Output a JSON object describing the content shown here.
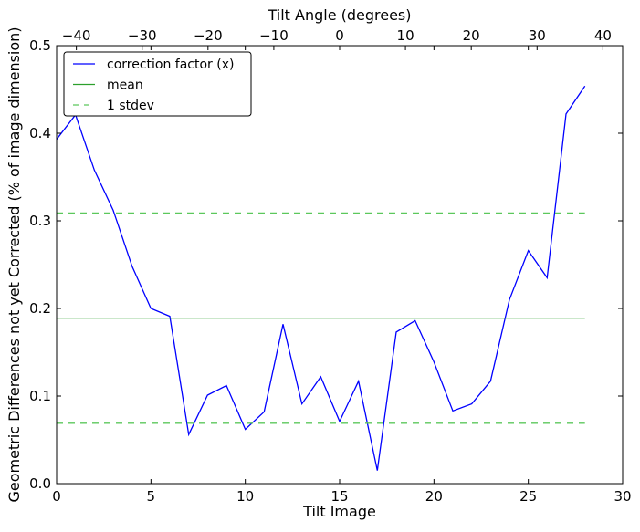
{
  "chart_data": {
    "type": "line",
    "xlabel": "Tilt Image",
    "ylabel": "Geometric Differences not yet Corrected (% of image dimension)",
    "top_xlabel": "Tilt Angle (degrees)",
    "xlim": [
      0,
      30
    ],
    "ylim": [
      0,
      0.5
    ],
    "top_xlim": [
      -43,
      43
    ],
    "xticks": [
      0,
      5,
      10,
      15,
      20,
      25,
      30
    ],
    "yticks": [
      0.0,
      0.1,
      0.2,
      0.3,
      0.4,
      0.5
    ],
    "ytick_labels": [
      "0.0",
      "0.1",
      "0.2",
      "0.3",
      "0.4",
      "0.5"
    ],
    "top_xticks": [
      -40,
      -30,
      -20,
      -10,
      0,
      10,
      20,
      30,
      40
    ],
    "top_xtick_labels": [
      "−40",
      "−30",
      "−20",
      "−10",
      "0",
      "10",
      "20",
      "30",
      "40"
    ],
    "grid": false,
    "legend_position": "top-left",
    "series": [
      {
        "name": "correction factor (x)",
        "color": "#0000ff",
        "style": "solid",
        "x": [
          0,
          1,
          2,
          3,
          4,
          5,
          6,
          7,
          8,
          9,
          10,
          11,
          12,
          13,
          14,
          15,
          16,
          17,
          18,
          19,
          20,
          21,
          22,
          23,
          24,
          25,
          26,
          27,
          28
        ],
        "values": [
          0.393,
          0.421,
          0.358,
          0.312,
          0.248,
          0.2,
          0.191,
          0.056,
          0.101,
          0.112,
          0.062,
          0.082,
          0.182,
          0.091,
          0.122,
          0.071,
          0.117,
          0.015,
          0.173,
          0.186,
          0.139,
          0.083,
          0.091,
          0.117,
          0.21,
          0.266,
          0.235,
          0.422,
          0.454
        ]
      },
      {
        "name": "mean",
        "color": "#2ca02c",
        "style": "solid",
        "x": [
          0,
          28
        ],
        "values": [
          0.189,
          0.189
        ]
      },
      {
        "name": "1 stdev",
        "color": "#5cc85c",
        "style": "dashed",
        "x": [
          0,
          28
        ],
        "values": [
          0.309,
          0.309
        ],
        "lower_values": [
          0.069,
          0.069
        ]
      }
    ]
  }
}
